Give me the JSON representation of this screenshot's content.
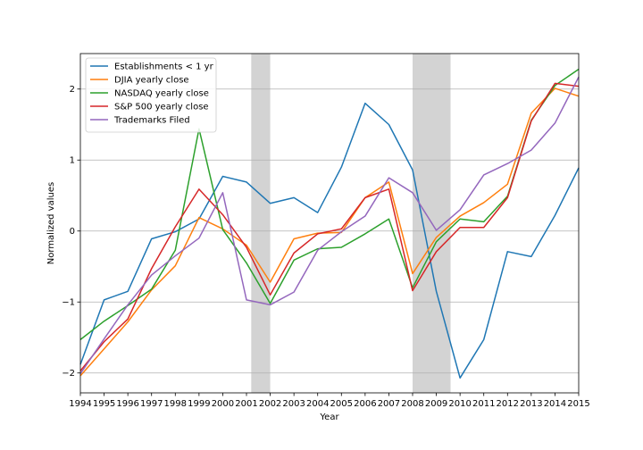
{
  "chart_data": {
    "type": "line",
    "title": "",
    "xlabel": "Year",
    "ylabel": "Normalized values",
    "xlim": [
      1994,
      2015
    ],
    "ylim": [
      -2.28,
      2.5
    ],
    "xticks": [
      1994,
      1995,
      1996,
      1997,
      1998,
      1999,
      2000,
      2001,
      2002,
      2003,
      2004,
      2005,
      2006,
      2007,
      2008,
      2009,
      2010,
      2011,
      2012,
      2013,
      2014,
      2015
    ],
    "yticks": [
      -2,
      -1,
      0,
      1,
      2
    ],
    "grid": "horizontal",
    "legend_position": "upper-left",
    "shaded_regions": [
      {
        "x0": 2001.2,
        "x1": 2002.0,
        "color": "#d3d3d3"
      },
      {
        "x0": 2008.0,
        "x1": 2009.6,
        "color": "#d3d3d3"
      }
    ],
    "x": [
      1994,
      1995,
      1996,
      1997,
      1998,
      1999,
      2000,
      2001,
      2002,
      2003,
      2004,
      2005,
      2006,
      2007,
      2008,
      2009,
      2010,
      2011,
      2012,
      2013,
      2014,
      2015
    ],
    "series": [
      {
        "name": "Establishments < 1 yr",
        "color": "#1f77b4",
        "values": [
          -1.88,
          -0.97,
          -0.85,
          -0.11,
          -0.01,
          0.17,
          0.77,
          0.69,
          0.39,
          0.47,
          0.26,
          0.9,
          1.8,
          1.5,
          0.86,
          -0.85,
          -2.07,
          -1.53,
          -0.29,
          -0.36,
          0.22,
          0.89
        ]
      },
      {
        "name": "DJIA yearly close",
        "color": "#ff7f0e",
        "values": [
          -2.04,
          -1.66,
          -1.28,
          -0.83,
          -0.49,
          0.19,
          0.03,
          -0.2,
          -0.72,
          -0.11,
          -0.03,
          -0.02,
          0.47,
          0.69,
          -0.6,
          -0.09,
          0.21,
          0.4,
          0.66,
          1.66,
          2.01,
          1.9
        ]
      },
      {
        "name": "NASDAQ yearly close",
        "color": "#2ca02c",
        "values": [
          -1.53,
          -1.27,
          -1.05,
          -0.82,
          -0.27,
          1.44,
          0.02,
          -0.45,
          -1.02,
          -0.41,
          -0.25,
          -0.23,
          -0.04,
          0.17,
          -0.8,
          -0.15,
          0.17,
          0.13,
          0.49,
          1.56,
          2.05,
          2.28
        ]
      },
      {
        "name": "S&P 500 yearly close",
        "color": "#d62728",
        "values": [
          -1.97,
          -1.56,
          -1.24,
          -0.53,
          0.06,
          0.59,
          0.23,
          -0.23,
          -0.9,
          -0.31,
          -0.04,
          0.03,
          0.47,
          0.59,
          -0.84,
          -0.29,
          0.05,
          0.05,
          0.47,
          1.55,
          2.08,
          2.04
        ]
      },
      {
        "name": "Trademarks Filed",
        "color": "#9467bd",
        "values": [
          -2.01,
          -1.52,
          -1.04,
          -0.62,
          -0.35,
          -0.1,
          0.54,
          -0.97,
          -1.04,
          -0.86,
          -0.27,
          -0.01,
          0.21,
          0.75,
          0.54,
          0.01,
          0.3,
          0.79,
          0.95,
          1.14,
          1.52,
          2.17
        ]
      }
    ]
  }
}
